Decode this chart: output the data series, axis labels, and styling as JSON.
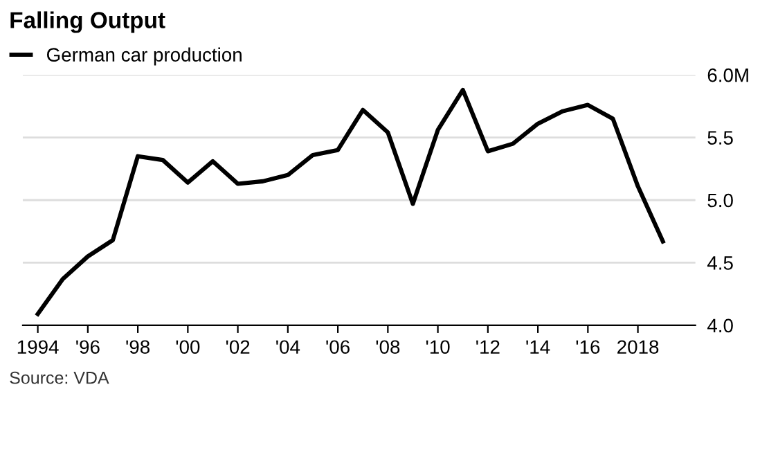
{
  "chart_data": {
    "type": "line",
    "title": "Falling Output",
    "annotations": [
      "Source: VDA"
    ],
    "x": [
      1994,
      1995,
      1996,
      1997,
      1998,
      1999,
      2000,
      2001,
      2002,
      2003,
      2004,
      2005,
      2006,
      2007,
      2008,
      2009,
      2010,
      2011,
      2012,
      2013,
      2014,
      2015,
      2016,
      2017,
      2018,
      2019
    ],
    "series": [
      {
        "name": "German car production",
        "color": "#000000",
        "values": [
          4.09,
          4.37,
          4.55,
          4.68,
          5.35,
          5.32,
          5.14,
          5.31,
          5.13,
          5.15,
          5.2,
          5.36,
          5.4,
          5.72,
          5.54,
          4.97,
          5.56,
          5.88,
          5.39,
          5.45,
          5.61,
          5.71,
          5.76,
          5.65,
          5.11,
          4.67
        ]
      }
    ],
    "xlim": [
      1993.4,
      2020.3
    ],
    "xticks": [
      1994,
      {
        "value": 1996,
        "label": "'96"
      },
      {
        "value": 1998,
        "label": "'98"
      },
      {
        "value": 2000,
        "label": "'00"
      },
      {
        "value": 2002,
        "label": "'02"
      },
      {
        "value": 2004,
        "label": "'04"
      },
      {
        "value": 2006,
        "label": "'06"
      },
      {
        "value": 2008,
        "label": "'08"
      },
      {
        "value": 2010,
        "label": "'10"
      },
      {
        "value": 2012,
        "label": "'12"
      },
      {
        "value": 2014,
        "label": "'14"
      },
      {
        "value": 2016,
        "label": "'16"
      },
      2018
    ],
    "ylim": [
      4.0,
      6.0
    ],
    "yticks": [
      {
        "value": 4,
        "label": "4.0"
      },
      4.5,
      {
        "value": 5,
        "label": "5.0"
      },
      5.5,
      {
        "value": 6,
        "label": "6.0M"
      }
    ],
    "grid": "y",
    "legend": "top left",
    "marker": "none",
    "line_style": "solid"
  }
}
